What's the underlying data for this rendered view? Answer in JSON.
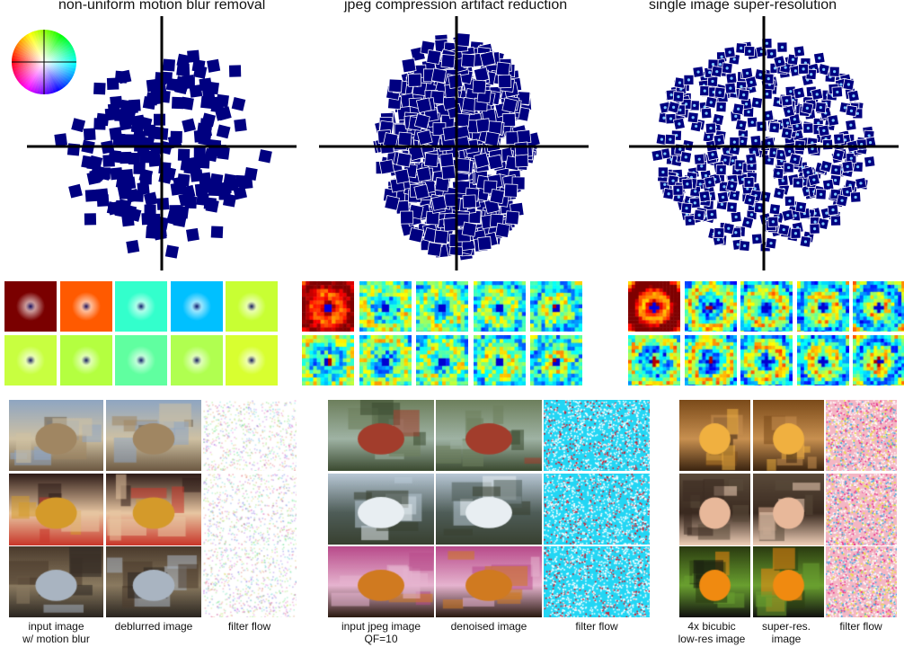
{
  "panels": [
    {
      "id": "deblur",
      "title": "non-uniform motion blur removal",
      "captions": [
        "input image\nw/ motion blur",
        "deblurred image",
        "filter flow"
      ]
    },
    {
      "id": "jpeg",
      "title": "jpeg compression artifact reduction",
      "captions": [
        "input jpeg image\nQF=10",
        "denoised image",
        "filter flow"
      ]
    },
    {
      "id": "sr",
      "title": "single image super-resolution",
      "captions": [
        "4x bicubic\nlow-res image",
        "super-res.\nimage",
        "filter flow"
      ]
    }
  ],
  "colors": {
    "marker": "#000080",
    "axis": "#000000",
    "kernel_bg_deblur": [
      "#7a0000",
      "#ff5a00",
      "#33ffcc",
      "#00c0ff",
      "#c8ff33",
      "#c8ff40",
      "#b4ff40",
      "#60ffa0",
      "#b0ff50",
      "#d8ff30"
    ]
  },
  "icons": {
    "color_wheel": "color-wheel-icon"
  }
}
